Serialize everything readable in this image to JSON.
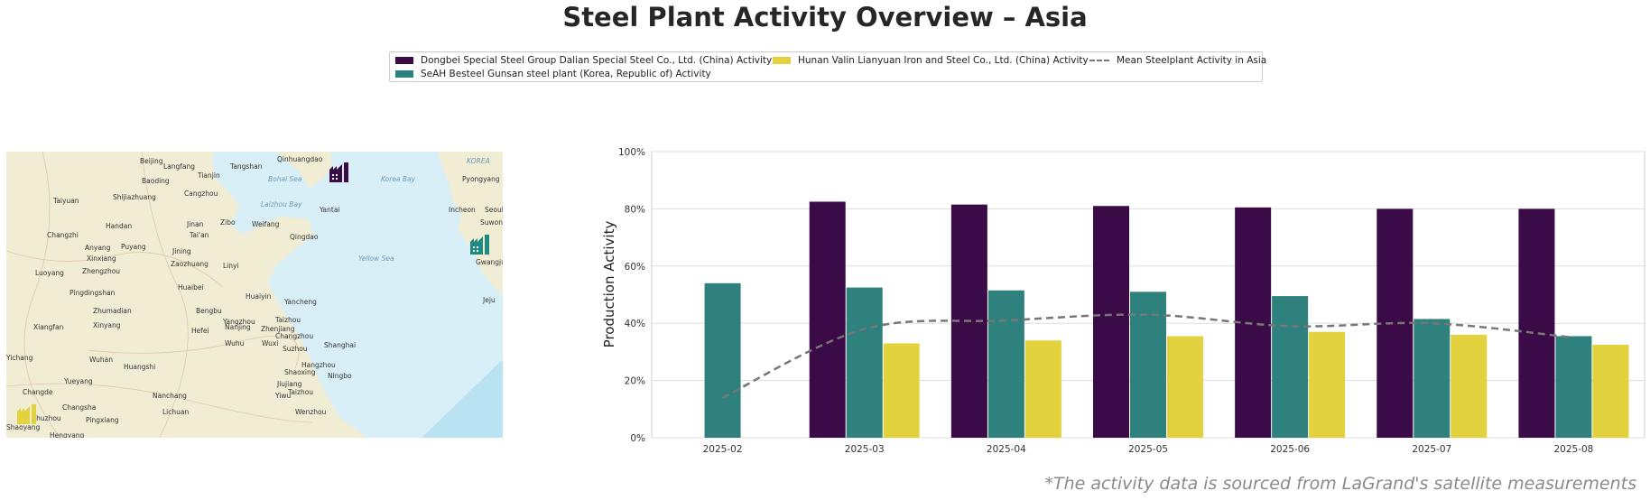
{
  "title": "Steel Plant Activity Overview – Asia",
  "legend": [
    {
      "label": "Dongbei Special Steel Group Dalian Special Steel Co., Ltd. (China) Activity",
      "color": "#3b0b47"
    },
    {
      "label": "SeAH Besteel Gunsan steel plant (Korea, Republic of) Activity",
      "color": "#2e817c"
    },
    {
      "label": "Hunan Valin Lianyuan Iron and Steel Co., Ltd. (China) Activity",
      "color": "#e2d23d"
    },
    {
      "label": "Mean Steelplant Activity in Asia",
      "color": "#777777"
    }
  ],
  "map": {
    "cities": [
      "Beijing",
      "Langfang",
      "Tangshan",
      "Qinhuangdao",
      "Baoding",
      "Tianjin",
      "Bohai Sea",
      "Korea Bay",
      "Pyongyang",
      "KOREA",
      "Taiyuan",
      "Shijiazhuang",
      "Cangzhou",
      "Laizhou Bay",
      "Yantai",
      "Incheon",
      "Seoul",
      "Suwon",
      "Changzhi",
      "Handan",
      "Jinan",
      "Zibo",
      "Weifang",
      "Tai'an",
      "Qingdao",
      "Anyang",
      "Puyang",
      "Jining",
      "Xinxiang",
      "Zaozhuang",
      "Linyi",
      "Yellow Sea",
      "Gwangju",
      "Luoyang",
      "Zhengzhou",
      "Huaibei",
      "Pingdingshan",
      "Huaiyin",
      "Yancheng",
      "Jeju",
      "Zhumadian",
      "Bengbu",
      "Yangzhou",
      "Taizhou",
      "Xiangfan",
      "Xinyang",
      "Hefei",
      "Nanjing",
      "Zhenjiang",
      "Changzhou",
      "Wuhu",
      "Wuxi",
      "Suzhou",
      "Shanghai",
      "Yichang",
      "Wuhan",
      "Huangshi",
      "Hangzhou",
      "Shaoxing",
      "Ningbo",
      "Yueyang",
      "Jiujiang",
      "Yiwu",
      "Changde",
      "Nanchang",
      "Taizhou",
      "Changsha",
      "Lichuan",
      "Wenzhou",
      "Zhuzhou",
      "Pingxiang",
      "Shaoyang",
      "Hengyang"
    ],
    "markers": [
      {
        "name": "Dongbei Special Steel Group Dalian Special Steel Co., Ltd.",
        "color": "#3b0b47"
      },
      {
        "name": "SeAH Besteel Gunsan steel plant",
        "color": "#1f8a80"
      },
      {
        "name": "Hunan Valin Lianyuan Iron and Steel Co., Ltd.",
        "color": "#e2d23d"
      }
    ]
  },
  "chart_data": {
    "type": "bar",
    "categories": [
      "2025-02",
      "2025-03",
      "2025-04",
      "2025-05",
      "2025-06",
      "2025-07",
      "2025-08"
    ],
    "series": [
      {
        "name": "Dongbei Special Steel Group Dalian Special Steel Co., Ltd. (China) Activity",
        "color": "#3b0b47",
        "values": [
          null,
          82.5,
          81.5,
          81,
          80.5,
          80,
          80
        ]
      },
      {
        "name": "SeAH Besteel Gunsan steel plant (Korea, Republic of) Activity",
        "color": "#2e817c",
        "values": [
          54,
          52.5,
          51.5,
          51,
          49.5,
          41.5,
          35.5
        ]
      },
      {
        "name": "Hunan Valin Lianyuan Iron and Steel Co., Ltd. (China) Activity",
        "color": "#e2d23d",
        "values": [
          null,
          33,
          34,
          35.5,
          37,
          36,
          32.5
        ]
      }
    ],
    "line": {
      "name": "Mean Steelplant Activity in Asia",
      "color": "#777777",
      "values": [
        14,
        38,
        41,
        43,
        39,
        40,
        35
      ]
    },
    "ylabel": "Production Activity",
    "xlabel": "",
    "ylim": [
      0,
      100
    ],
    "yticks": [
      "0%",
      "20%",
      "40%",
      "60%",
      "80%",
      "100%"
    ],
    "grid": true
  },
  "source_note": "*The activity data is sourced from LaGrand's satellite measurements"
}
